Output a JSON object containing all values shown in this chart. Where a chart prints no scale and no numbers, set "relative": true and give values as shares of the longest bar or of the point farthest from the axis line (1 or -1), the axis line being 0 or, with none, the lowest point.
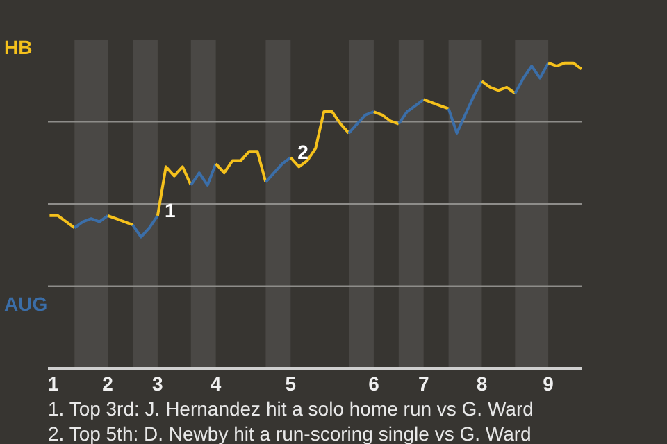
{
  "chart_data": {
    "type": "line",
    "relative": true,
    "categories": [
      "1",
      null,
      null,
      null,
      null,
      null,
      null,
      "2",
      null,
      null,
      null,
      null,
      null,
      "3",
      null,
      null,
      null,
      null,
      null,
      null,
      "4",
      null,
      null,
      null,
      null,
      null,
      null,
      null,
      null,
      "5",
      null,
      null,
      null,
      null,
      null,
      null,
      null,
      null,
      null,
      "6",
      null,
      null,
      null,
      null,
      null,
      "7",
      null,
      null,
      null,
      null,
      null,
      null,
      "8",
      null,
      null,
      null,
      null,
      null,
      null,
      null,
      "9",
      null,
      null,
      null,
      null
    ],
    "grid": "y",
    "line_style": "solid",
    "marker": "none",
    "series": [
      {
        "name": "HB",
        "color": "#f5c11c",
        "values": [
          0.5,
          0.5,
          0.48,
          0.46,
          null,
          null,
          null,
          null,
          null,
          null,
          null,
          null,
          null,
          null,
          null,
          null,
          null,
          null,
          null,
          null,
          null,
          null,
          null,
          null,
          null,
          null,
          null,
          null,
          null,
          null,
          null,
          null,
          null,
          null,
          null,
          null,
          null,
          null,
          null,
          null,
          null,
          null,
          null,
          null,
          null,
          null,
          null,
          null,
          null,
          null,
          null,
          null,
          null,
          null,
          null,
          null,
          null,
          null,
          null,
          null,
          null,
          null,
          null,
          null,
          null
        ]
      },
      {
        "name": "AUG",
        "color": "#3b6ea8",
        "values": [
          null,
          null,
          null,
          0.46,
          0.48,
          0.49,
          0.48,
          0.5,
          null,
          null,
          null,
          null,
          null,
          null,
          null,
          null,
          null,
          null,
          null,
          null,
          null,
          null,
          null,
          null,
          null,
          null,
          null,
          null,
          null,
          null,
          null,
          null,
          null,
          null,
          null,
          null,
          null,
          null,
          null,
          null,
          null,
          null,
          null,
          null,
          null,
          null,
          null,
          null,
          null,
          null,
          null,
          null,
          null,
          null,
          null,
          null,
          null,
          null,
          null,
          null,
          null,
          null,
          null,
          null,
          null
        ]
      },
      {
        "color": "#f5c11c",
        "values": [
          null,
          null,
          null,
          null,
          null,
          null,
          null,
          0.5,
          0.49,
          0.48,
          0.47,
          null,
          null,
          null,
          null,
          null,
          null,
          null,
          null,
          null,
          null,
          null,
          null,
          null,
          null,
          null,
          null,
          null,
          null,
          null,
          null,
          null,
          null,
          null,
          null,
          null,
          null,
          null,
          null,
          null,
          null,
          null,
          null,
          null,
          null,
          null,
          null,
          null,
          null,
          null,
          null,
          null,
          null,
          null,
          null,
          null,
          null,
          null,
          null,
          null,
          null,
          null,
          null,
          null,
          null
        ]
      },
      {
        "color": "#3b6ea8",
        "values": [
          null,
          null,
          null,
          null,
          null,
          null,
          null,
          null,
          null,
          null,
          0.47,
          0.43,
          0.46,
          0.5,
          null,
          null,
          null,
          null,
          null,
          null,
          null,
          null,
          null,
          null,
          null,
          null,
          null,
          null,
          null,
          null,
          null,
          null,
          null,
          null,
          null,
          null,
          null,
          null,
          null,
          null,
          null,
          null,
          null,
          null,
          null,
          null,
          null,
          null,
          null,
          null,
          null,
          null,
          null,
          null,
          null,
          null,
          null,
          null,
          null,
          null,
          null,
          null,
          null,
          null,
          null
        ]
      },
      {
        "color": "#f5c11c",
        "values": [
          null,
          null,
          null,
          null,
          null,
          null,
          null,
          null,
          null,
          null,
          null,
          null,
          null,
          0.5,
          0.66,
          0.63,
          0.66,
          0.6,
          null,
          null,
          null,
          null,
          null,
          null,
          null,
          null,
          null,
          null,
          null,
          null,
          null,
          null,
          null,
          null,
          null,
          null,
          null,
          null,
          null,
          null,
          null,
          null,
          null,
          null,
          null,
          null,
          null,
          null,
          null,
          null,
          null,
          null,
          null,
          null,
          null,
          null,
          null,
          null,
          null,
          null,
          null,
          null,
          null,
          null,
          null
        ]
      },
      {
        "color": "#3b6ea8",
        "values": [
          null,
          null,
          null,
          null,
          null,
          null,
          null,
          null,
          null,
          null,
          null,
          null,
          null,
          null,
          null,
          null,
          null,
          0.6,
          0.64,
          0.6,
          0.67,
          null,
          null,
          null,
          null,
          null,
          null,
          null,
          null,
          null,
          null,
          null,
          null,
          null,
          null,
          null,
          null,
          null,
          null,
          null,
          null,
          null,
          null,
          null,
          null,
          null,
          null,
          null,
          null,
          null,
          null,
          null,
          null,
          null,
          null,
          null,
          null,
          null,
          null,
          null,
          null,
          null,
          null,
          null,
          null
        ]
      },
      {
        "color": "#f5c11c",
        "values": [
          null,
          null,
          null,
          null,
          null,
          null,
          null,
          null,
          null,
          null,
          null,
          null,
          null,
          null,
          null,
          null,
          null,
          null,
          null,
          null,
          0.67,
          0.64,
          0.68,
          0.68,
          0.71,
          0.71,
          0.61,
          null,
          null,
          null,
          null,
          null,
          null,
          null,
          null,
          null,
          null,
          null,
          null,
          null,
          null,
          null,
          null,
          null,
          null,
          null,
          null,
          null,
          null,
          null,
          null,
          null,
          null,
          null,
          null,
          null,
          null,
          null,
          null,
          null,
          null,
          null,
          null,
          null,
          null
        ]
      },
      {
        "color": "#3b6ea8",
        "values": [
          null,
          null,
          null,
          null,
          null,
          null,
          null,
          null,
          null,
          null,
          null,
          null,
          null,
          null,
          null,
          null,
          null,
          null,
          null,
          null,
          null,
          null,
          null,
          null,
          null,
          null,
          0.61,
          0.64,
          0.67,
          0.69,
          null,
          null,
          null,
          null,
          null,
          null,
          null,
          null,
          null,
          null,
          null,
          null,
          null,
          null,
          null,
          null,
          null,
          null,
          null,
          null,
          null,
          null,
          null,
          null,
          null,
          null,
          null,
          null,
          null,
          null,
          null,
          null,
          null,
          null,
          null
        ]
      },
      {
        "color": "#f5c11c",
        "values": [
          null,
          null,
          null,
          null,
          null,
          null,
          null,
          null,
          null,
          null,
          null,
          null,
          null,
          null,
          null,
          null,
          null,
          null,
          null,
          null,
          null,
          null,
          null,
          null,
          null,
          null,
          null,
          null,
          null,
          0.69,
          0.66,
          0.68,
          0.72,
          0.84,
          0.84,
          0.8,
          0.77,
          null,
          null,
          null,
          null,
          null,
          null,
          null,
          null,
          null,
          null,
          null,
          null,
          null,
          null,
          null,
          null,
          null,
          null,
          null,
          null,
          null,
          null,
          null,
          null,
          null,
          null,
          null,
          null
        ]
      },
      {
        "color": "#3b6ea8",
        "values": [
          null,
          null,
          null,
          null,
          null,
          null,
          null,
          null,
          null,
          null,
          null,
          null,
          null,
          null,
          null,
          null,
          null,
          null,
          null,
          null,
          null,
          null,
          null,
          null,
          null,
          null,
          null,
          null,
          null,
          null,
          null,
          null,
          null,
          null,
          null,
          null,
          0.77,
          0.8,
          0.83,
          0.84,
          null,
          null,
          null,
          null,
          null,
          null,
          null,
          null,
          null,
          null,
          null,
          null,
          null,
          null,
          null,
          null,
          null,
          null,
          null,
          null,
          null,
          null,
          null,
          null,
          null
        ]
      },
      {
        "color": "#f5c11c",
        "values": [
          null,
          null,
          null,
          null,
          null,
          null,
          null,
          null,
          null,
          null,
          null,
          null,
          null,
          null,
          null,
          null,
          null,
          null,
          null,
          null,
          null,
          null,
          null,
          null,
          null,
          null,
          null,
          null,
          null,
          null,
          null,
          null,
          null,
          null,
          null,
          null,
          null,
          null,
          null,
          0.84,
          0.83,
          0.81,
          0.8,
          null,
          null,
          null,
          null,
          null,
          null,
          null,
          null,
          null,
          null,
          null,
          null,
          null,
          null,
          null,
          null,
          null,
          null,
          null,
          null,
          null,
          null
        ]
      },
      {
        "color": "#3b6ea8",
        "values": [
          null,
          null,
          null,
          null,
          null,
          null,
          null,
          null,
          null,
          null,
          null,
          null,
          null,
          null,
          null,
          null,
          null,
          null,
          null,
          null,
          null,
          null,
          null,
          null,
          null,
          null,
          null,
          null,
          null,
          null,
          null,
          null,
          null,
          null,
          null,
          null,
          null,
          null,
          null,
          null,
          null,
          null,
          0.8,
          0.84,
          0.86,
          0.88,
          null,
          null,
          null,
          null,
          null,
          null,
          null,
          null,
          null,
          null,
          null,
          null,
          null,
          null,
          null,
          null,
          null,
          null,
          null
        ]
      },
      {
        "color": "#f5c11c",
        "values": [
          null,
          null,
          null,
          null,
          null,
          null,
          null,
          null,
          null,
          null,
          null,
          null,
          null,
          null,
          null,
          null,
          null,
          null,
          null,
          null,
          null,
          null,
          null,
          null,
          null,
          null,
          null,
          null,
          null,
          null,
          null,
          null,
          null,
          null,
          null,
          null,
          null,
          null,
          null,
          null,
          null,
          null,
          null,
          null,
          null,
          0.88,
          0.87,
          0.86,
          0.85,
          null,
          null,
          null,
          null,
          null,
          null,
          null,
          null,
          null,
          null,
          null,
          null,
          null,
          null,
          null,
          null
        ]
      },
      {
        "color": "#3b6ea8",
        "values": [
          null,
          null,
          null,
          null,
          null,
          null,
          null,
          null,
          null,
          null,
          null,
          null,
          null,
          null,
          null,
          null,
          null,
          null,
          null,
          null,
          null,
          null,
          null,
          null,
          null,
          null,
          null,
          null,
          null,
          null,
          null,
          null,
          null,
          null,
          null,
          null,
          null,
          null,
          null,
          null,
          null,
          null,
          null,
          null,
          null,
          null,
          null,
          null,
          0.85,
          0.77,
          0.83,
          0.89,
          0.94,
          null,
          null,
          null,
          null,
          null,
          null,
          null,
          null,
          null,
          null,
          null,
          null
        ]
      },
      {
        "color": "#f5c11c",
        "values": [
          null,
          null,
          null,
          null,
          null,
          null,
          null,
          null,
          null,
          null,
          null,
          null,
          null,
          null,
          null,
          null,
          null,
          null,
          null,
          null,
          null,
          null,
          null,
          null,
          null,
          null,
          null,
          null,
          null,
          null,
          null,
          null,
          null,
          null,
          null,
          null,
          null,
          null,
          null,
          null,
          null,
          null,
          null,
          null,
          null,
          null,
          null,
          null,
          null,
          null,
          null,
          null,
          0.94,
          0.92,
          0.91,
          0.92,
          0.9,
          null,
          null,
          null,
          null,
          null,
          null,
          null,
          null
        ]
      },
      {
        "color": "#3b6ea8",
        "values": [
          null,
          null,
          null,
          null,
          null,
          null,
          null,
          null,
          null,
          null,
          null,
          null,
          null,
          null,
          null,
          null,
          null,
          null,
          null,
          null,
          null,
          null,
          null,
          null,
          null,
          null,
          null,
          null,
          null,
          null,
          null,
          null,
          null,
          null,
          null,
          null,
          null,
          null,
          null,
          null,
          null,
          null,
          null,
          null,
          null,
          null,
          null,
          null,
          null,
          null,
          null,
          null,
          null,
          null,
          null,
          null,
          0.9,
          0.95,
          0.99,
          0.95,
          1.0,
          null,
          null,
          null,
          null
        ]
      },
      {
        "color": "#f5c11c",
        "values": [
          null,
          null,
          null,
          null,
          null,
          null,
          null,
          null,
          null,
          null,
          null,
          null,
          null,
          null,
          null,
          null,
          null,
          null,
          null,
          null,
          null,
          null,
          null,
          null,
          null,
          null,
          null,
          null,
          null,
          null,
          null,
          null,
          null,
          null,
          null,
          null,
          null,
          null,
          null,
          null,
          null,
          null,
          null,
          null,
          null,
          null,
          null,
          null,
          null,
          null,
          null,
          null,
          null,
          null,
          null,
          null,
          null,
          null,
          null,
          null,
          1.0,
          0.99,
          1.0,
          1.0,
          0.98
        ]
      }
    ],
    "annotations": [
      {
        "text": "1",
        "x": "3"
      },
      {
        "text": "2",
        "x": "5"
      },
      "1. Top 3rd: J. Hernandez hit a solo home run vs G. Ward",
      "2. Top 5th: D. Newby hit a run-scoring single vs G. Ward"
    ]
  }
}
